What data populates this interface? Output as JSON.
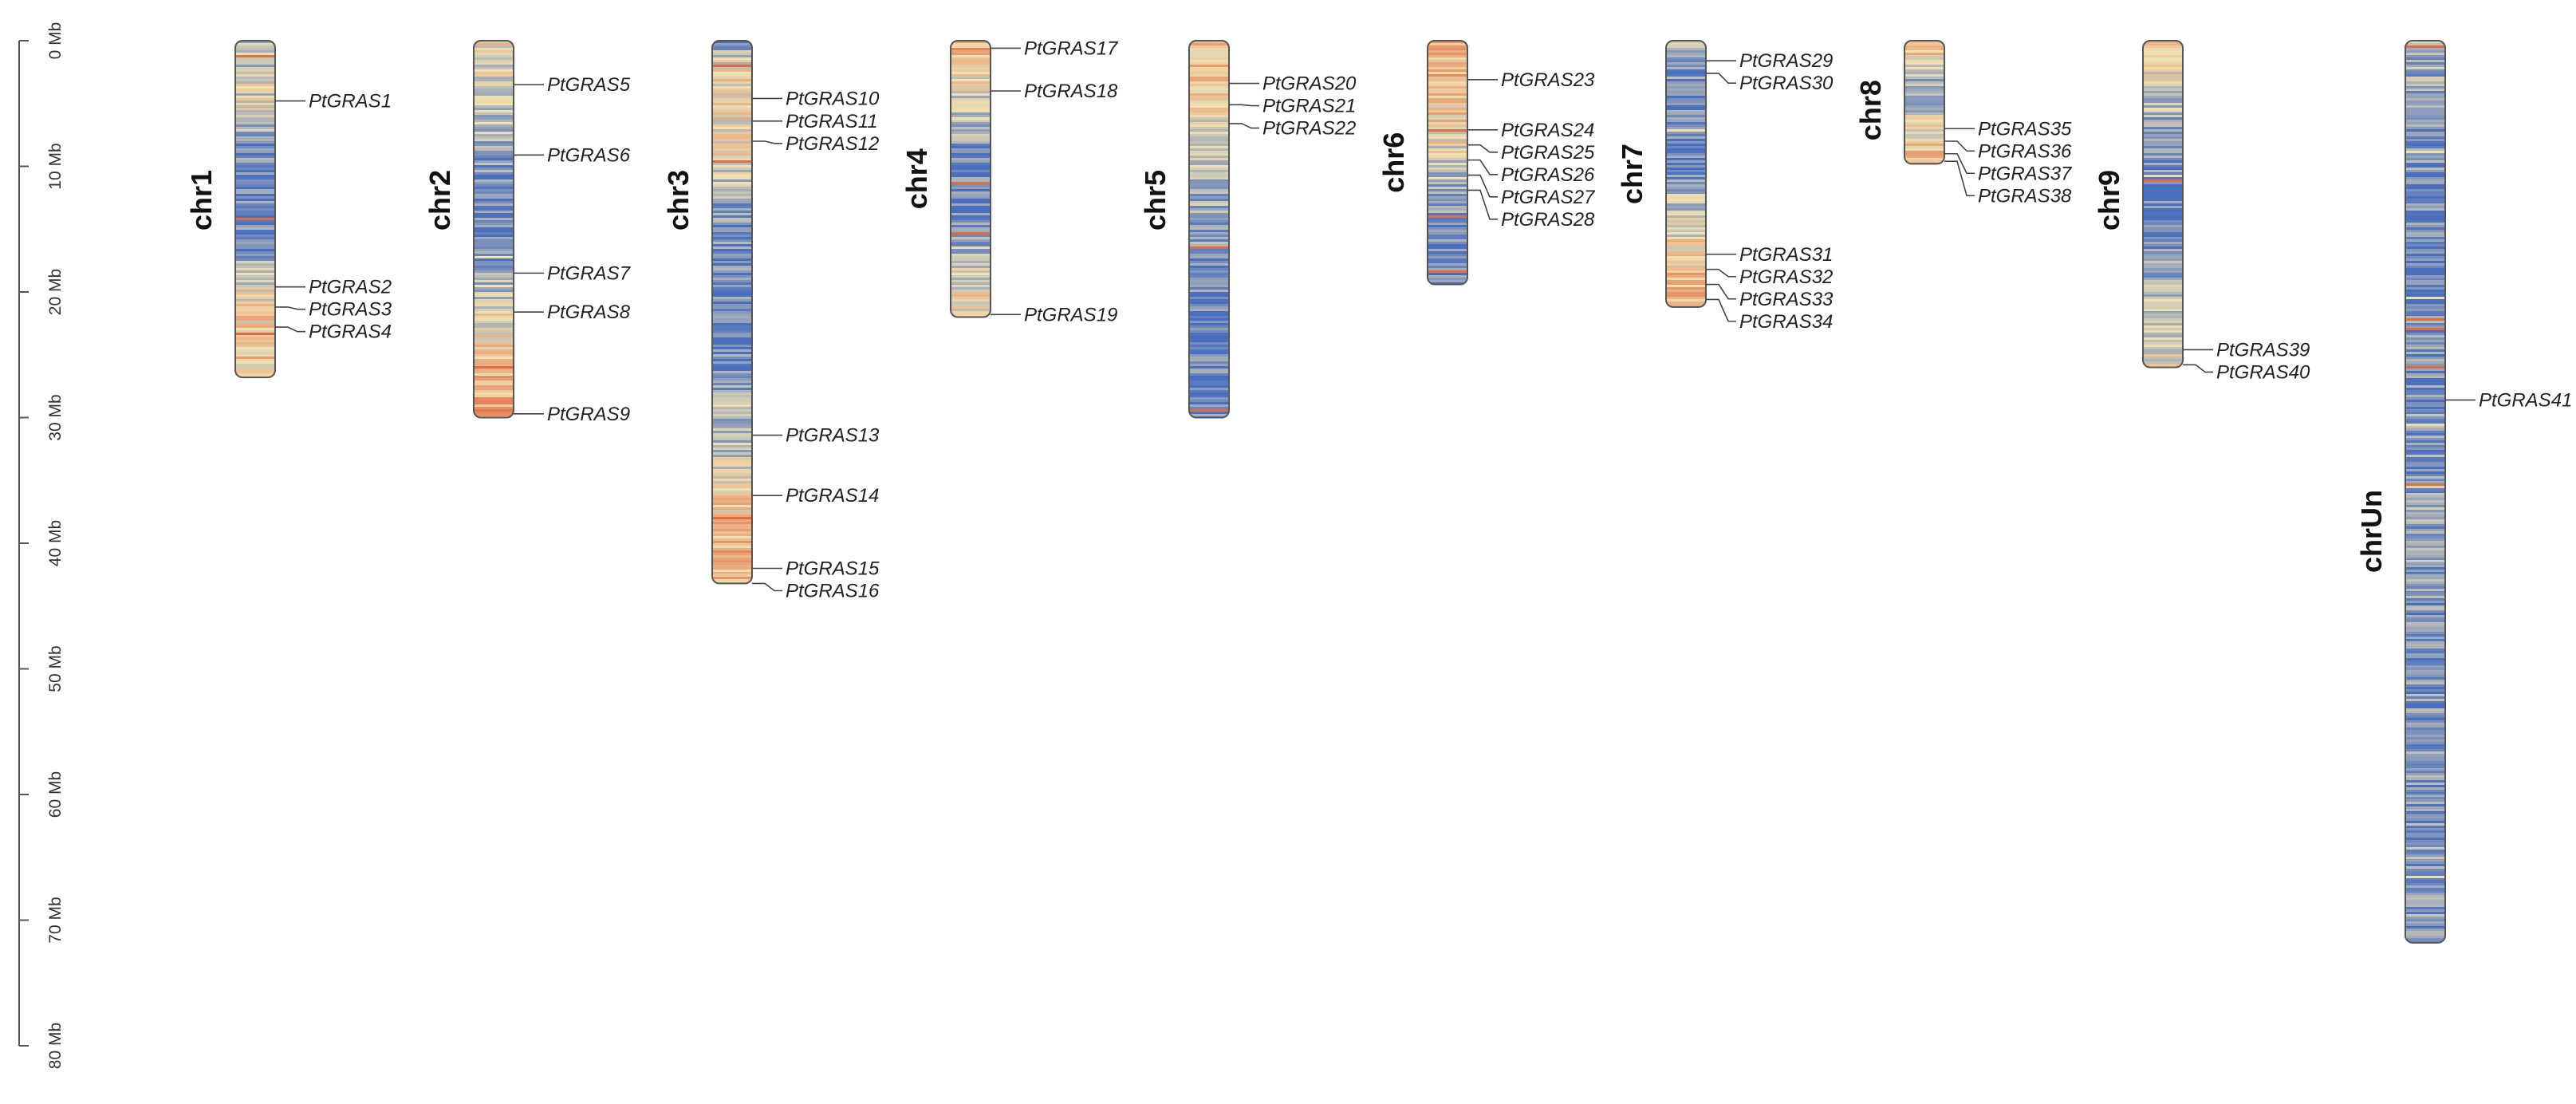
{
  "scale": {
    "unit": "Mb",
    "max_mb": 80,
    "ticks": [
      {
        "value": 0,
        "label": "0 Mb"
      },
      {
        "value": 10,
        "label": "10 Mb"
      },
      {
        "value": 20,
        "label": "20 Mb"
      },
      {
        "value": 30,
        "label": "30 Mb"
      },
      {
        "value": 40,
        "label": "40 Mb"
      },
      {
        "value": 50,
        "label": "50 Mb"
      },
      {
        "value": 60,
        "label": "60 Mb"
      },
      {
        "value": 70,
        "label": "70 Mb"
      },
      {
        "value": 80,
        "label": "80 Mb"
      }
    ]
  },
  "colors": {
    "low_density": "#4a6fbf",
    "mid_density": "#f1e2b3",
    "high_density": "#e0663c",
    "outline": "#555555",
    "axis": "#555555"
  },
  "chromosomes": [
    {
      "name": "chr1",
      "length_mb": 26.8,
      "density_profile": [
        [
          0,
          0.35
        ],
        [
          0.2,
          0.45
        ],
        [
          0.3,
          0.12
        ],
        [
          0.45,
          0.08
        ],
        [
          0.62,
          0.12
        ],
        [
          0.7,
          0.4
        ],
        [
          0.8,
          0.55
        ],
        [
          1,
          0.62
        ]
      ],
      "genes": [
        {
          "name": "PtGRAS1",
          "pos_mb": 4.8
        },
        {
          "name": "PtGRAS2",
          "pos_mb": 19.6
        },
        {
          "name": "PtGRAS3",
          "pos_mb": 21.2
        },
        {
          "name": "PtGRAS4",
          "pos_mb": 22.8
        }
      ]
    },
    {
      "name": "chr2",
      "length_mb": 30,
      "density_profile": [
        [
          0,
          0.5
        ],
        [
          0.15,
          0.45
        ],
        [
          0.3,
          0.2
        ],
        [
          0.42,
          0.08
        ],
        [
          0.58,
          0.14
        ],
        [
          0.7,
          0.45
        ],
        [
          0.85,
          0.62
        ],
        [
          1,
          0.75
        ]
      ],
      "genes": [
        {
          "name": "PtGRAS5",
          "pos_mb": 3.5
        },
        {
          "name": "PtGRAS6",
          "pos_mb": 9.1
        },
        {
          "name": "PtGRAS7",
          "pos_mb": 18.5
        },
        {
          "name": "PtGRAS8",
          "pos_mb": 21.6
        },
        {
          "name": "PtGRAS9",
          "pos_mb": 29.7
        }
      ]
    },
    {
      "name": "chr3",
      "length_mb": 43.2,
      "density_profile": [
        [
          0,
          0.1
        ],
        [
          0.05,
          0.55
        ],
        [
          0.2,
          0.5
        ],
        [
          0.3,
          0.22
        ],
        [
          0.4,
          0.1
        ],
        [
          0.55,
          0.1
        ],
        [
          0.7,
          0.25
        ],
        [
          0.8,
          0.5
        ],
        [
          0.9,
          0.65
        ],
        [
          1,
          0.7
        ]
      ],
      "genes": [
        {
          "name": "PtGRAS10",
          "pos_mb": 4.6
        },
        {
          "name": "PtGRAS11",
          "pos_mb": 6.4
        },
        {
          "name": "PtGRAS12",
          "pos_mb": 8.0
        },
        {
          "name": "PtGRAS13",
          "pos_mb": 31.4
        },
        {
          "name": "PtGRAS14",
          "pos_mb": 36.2
        },
        {
          "name": "PtGRAS15",
          "pos_mb": 42.0
        },
        {
          "name": "PtGRAS16",
          "pos_mb": 43.2
        }
      ]
    },
    {
      "name": "chr4",
      "length_mb": 22,
      "density_profile": [
        [
          0,
          0.7
        ],
        [
          0.15,
          0.5
        ],
        [
          0.3,
          0.3
        ],
        [
          0.45,
          0.1
        ],
        [
          0.6,
          0.08
        ],
        [
          0.75,
          0.3
        ],
        [
          0.9,
          0.48
        ],
        [
          1,
          0.5
        ]
      ],
      "genes": [
        {
          "name": "PtGRAS17",
          "pos_mb": 0.6
        },
        {
          "name": "PtGRAS18",
          "pos_mb": 4.0
        },
        {
          "name": "PtGRAS19",
          "pos_mb": 21.8
        }
      ]
    },
    {
      "name": "chr5",
      "length_mb": 30,
      "density_profile": [
        [
          0,
          0.62
        ],
        [
          0.15,
          0.55
        ],
        [
          0.3,
          0.4
        ],
        [
          0.45,
          0.25
        ],
        [
          0.6,
          0.12
        ],
        [
          0.75,
          0.1
        ],
        [
          0.9,
          0.08
        ],
        [
          1,
          0.1
        ]
      ],
      "genes": [
        {
          "name": "PtGRAS20",
          "pos_mb": 3.4
        },
        {
          "name": "PtGRAS21",
          "pos_mb": 5.1
        },
        {
          "name": "PtGRAS22",
          "pos_mb": 6.6
        }
      ]
    },
    {
      "name": "chr6",
      "length_mb": 19.4,
      "density_profile": [
        [
          0,
          0.72
        ],
        [
          0.2,
          0.65
        ],
        [
          0.35,
          0.55
        ],
        [
          0.5,
          0.42
        ],
        [
          0.62,
          0.22
        ],
        [
          0.75,
          0.12
        ],
        [
          0.9,
          0.08
        ],
        [
          1,
          0.08
        ]
      ],
      "genes": [
        {
          "name": "PtGRAS23",
          "pos_mb": 3.1
        },
        {
          "name": "PtGRAS24",
          "pos_mb": 7.1
        },
        {
          "name": "PtGRAS25",
          "pos_mb": 8.3
        },
        {
          "name": "PtGRAS26",
          "pos_mb": 9.5
        },
        {
          "name": "PtGRAS27",
          "pos_mb": 10.7
        },
        {
          "name": "PtGRAS28",
          "pos_mb": 11.9
        }
      ]
    },
    {
      "name": "chr7",
      "length_mb": 21.2,
      "density_profile": [
        [
          0,
          0.3
        ],
        [
          0.1,
          0.18
        ],
        [
          0.25,
          0.08
        ],
        [
          0.45,
          0.08
        ],
        [
          0.55,
          0.2
        ],
        [
          0.68,
          0.45
        ],
        [
          0.8,
          0.58
        ],
        [
          1,
          0.68
        ]
      ],
      "genes": [
        {
          "name": "PtGRAS29",
          "pos_mb": 1.6
        },
        {
          "name": "PtGRAS30",
          "pos_mb": 2.6
        },
        {
          "name": "PtGRAS31",
          "pos_mb": 17.0
        },
        {
          "name": "PtGRAS32",
          "pos_mb": 18.2
        },
        {
          "name": "PtGRAS33",
          "pos_mb": 19.4
        },
        {
          "name": "PtGRAS34",
          "pos_mb": 20.6
        }
      ]
    },
    {
      "name": "chr8",
      "length_mb": 9.8,
      "density_profile": [
        [
          0,
          0.7
        ],
        [
          0.2,
          0.5
        ],
        [
          0.4,
          0.2
        ],
        [
          0.55,
          0.35
        ],
        [
          0.75,
          0.55
        ],
        [
          1,
          0.7
        ]
      ],
      "genes": [
        {
          "name": "PtGRAS35",
          "pos_mb": 7.0
        },
        {
          "name": "PtGRAS36",
          "pos_mb": 8.0
        },
        {
          "name": "PtGRAS37",
          "pos_mb": 9.0
        },
        {
          "name": "PtGRAS38",
          "pos_mb": 9.6
        }
      ]
    },
    {
      "name": "chr9",
      "length_mb": 26,
      "density_profile": [
        [
          0,
          0.7
        ],
        [
          0.1,
          0.5
        ],
        [
          0.25,
          0.2
        ],
        [
          0.45,
          0.1
        ],
        [
          0.6,
          0.1
        ],
        [
          0.75,
          0.25
        ],
        [
          0.88,
          0.42
        ],
        [
          1,
          0.5
        ]
      ],
      "genes": [
        {
          "name": "PtGRAS39",
          "pos_mb": 24.6
        },
        {
          "name": "PtGRAS40",
          "pos_mb": 25.8
        }
      ]
    },
    {
      "name": "chrUn",
      "length_mb": 71.8,
      "density_profile": [
        [
          0,
          0.28
        ],
        [
          0.1,
          0.18
        ],
        [
          0.25,
          0.1
        ],
        [
          0.4,
          0.15
        ],
        [
          0.5,
          0.22
        ],
        [
          0.65,
          0.15
        ],
        [
          0.8,
          0.14
        ],
        [
          1,
          0.22
        ]
      ],
      "genes": [
        {
          "name": "PtGRAS41",
          "pos_mb": 28.6
        }
      ]
    }
  ]
}
